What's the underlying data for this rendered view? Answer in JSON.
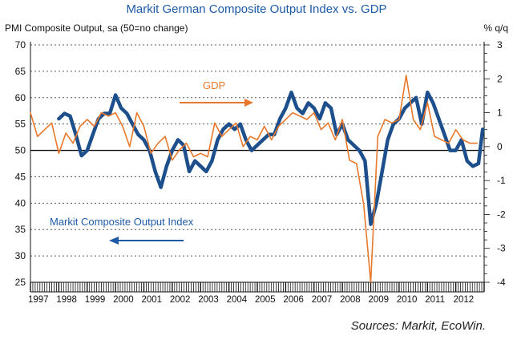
{
  "chart_data": {
    "type": "line",
    "title": "Markit German Composite Output Index vs. GDP",
    "left_axis_label": "PMI Composite Output, sa (50=no change)",
    "right_axis_label": "% q/q",
    "source": "Sources: Markit, EcoWin.",
    "left_ylim": [
      25,
      70
    ],
    "left_ticks": [
      "70",
      "65",
      "60",
      "55",
      "50",
      "45",
      "40",
      "35",
      "30",
      "25"
    ],
    "right_ylim": [
      -4,
      3
    ],
    "right_ticks": [
      "3",
      "2",
      "1",
      "0",
      "-1",
      "-2",
      "-3",
      "-4"
    ],
    "xlim": [
      1997,
      2013
    ],
    "x_tick_labels": [
      "1997",
      "1998",
      "1999",
      "2000",
      "2001",
      "2002",
      "2003",
      "2004",
      "2005",
      "2006",
      "2007",
      "2008",
      "2009",
      "2010",
      "2011",
      "2012"
    ],
    "reference_line": {
      "axis": "left",
      "value": 50
    },
    "annotations": [
      {
        "text": "GDP",
        "color": "#e8782b",
        "arrow": "right"
      },
      {
        "text": "Markit Composite Output Index",
        "color": "#1f5aa6",
        "arrow": "left"
      }
    ],
    "series": [
      {
        "name": "Markit Composite Output Index",
        "axis": "left",
        "color": "#1c4f8c",
        "x": [
          1998.0,
          1998.2,
          1998.4,
          1998.6,
          1998.8,
          1999.0,
          1999.2,
          1999.4,
          1999.6,
          1999.8,
          2000.0,
          2000.2,
          2000.4,
          2000.6,
          2000.8,
          2001.0,
          2001.2,
          2001.4,
          2001.6,
          2001.8,
          2002.0,
          2002.2,
          2002.4,
          2002.6,
          2002.8,
          2003.0,
          2003.2,
          2003.4,
          2003.6,
          2003.8,
          2004.0,
          2004.2,
          2004.4,
          2004.6,
          2004.8,
          2005.0,
          2005.2,
          2005.4,
          2005.6,
          2005.8,
          2006.0,
          2006.2,
          2006.4,
          2006.6,
          2006.8,
          2007.0,
          2007.2,
          2007.4,
          2007.6,
          2007.8,
          2008.0,
          2008.2,
          2008.4,
          2008.6,
          2008.8,
          2009.0,
          2009.2,
          2009.4,
          2009.6,
          2009.8,
          2010.0,
          2010.2,
          2010.4,
          2010.6,
          2010.8,
          2011.0,
          2011.2,
          2011.4,
          2011.6,
          2011.8,
          2012.0,
          2012.2,
          2012.4,
          2012.6,
          2012.8,
          2012.95
        ],
        "values": [
          56,
          57,
          56.5,
          53,
          49,
          50,
          53,
          56,
          57,
          57,
          60.5,
          58,
          57,
          55,
          53,
          52,
          50,
          46,
          43,
          47,
          50,
          52,
          51,
          46,
          48,
          47,
          46,
          48,
          52,
          54,
          55,
          54,
          55,
          52,
          50,
          51,
          52,
          53,
          53,
          56,
          58,
          61,
          58,
          57,
          59,
          58,
          56,
          59,
          58,
          53,
          55,
          52,
          51,
          50,
          48,
          36,
          40,
          46,
          52,
          55,
          56,
          58,
          59,
          60,
          55,
          61,
          59,
          56,
          53,
          50,
          50,
          52,
          48,
          47,
          47.5,
          54
        ]
      },
      {
        "name": "GDP",
        "axis": "right",
        "color": "#e8782b",
        "x": [
          1997.0,
          1997.25,
          1997.5,
          1997.75,
          1998.0,
          1998.25,
          1998.5,
          1998.75,
          1999.0,
          1999.25,
          1999.5,
          1999.75,
          2000.0,
          2000.25,
          2000.5,
          2000.75,
          2001.0,
          2001.25,
          2001.5,
          2001.75,
          2002.0,
          2002.25,
          2002.5,
          2002.75,
          2003.0,
          2003.25,
          2003.5,
          2003.75,
          2004.0,
          2004.25,
          2004.5,
          2004.75,
          2005.0,
          2005.25,
          2005.5,
          2005.75,
          2006.0,
          2006.25,
          2006.5,
          2006.75,
          2007.0,
          2007.25,
          2007.5,
          2007.75,
          2008.0,
          2008.25,
          2008.5,
          2008.75,
          2009.0,
          2009.25,
          2009.5,
          2009.75,
          2010.0,
          2010.25,
          2010.5,
          2010.75,
          2011.0,
          2011.25,
          2011.5,
          2011.75,
          2012.0,
          2012.25,
          2012.5,
          2012.75
        ],
        "values": [
          1.0,
          0.3,
          0.5,
          0.7,
          -0.2,
          0.4,
          0.1,
          0.6,
          0.8,
          0.6,
          1.0,
          0.9,
          1.0,
          0.6,
          0.0,
          1.0,
          0.6,
          -0.2,
          0.1,
          0.3,
          -0.4,
          -0.1,
          0.1,
          -0.3,
          -0.2,
          -0.3,
          0.7,
          0.3,
          0.5,
          0.7,
          0.0,
          0.3,
          0.2,
          0.6,
          0.2,
          0.6,
          0.8,
          1.0,
          0.9,
          0.8,
          1.0,
          0.5,
          0.7,
          0.2,
          0.8,
          -0.4,
          -0.5,
          -1.7,
          -4.0,
          0.3,
          0.8,
          0.7,
          0.8,
          2.1,
          0.8,
          0.5,
          1.3,
          0.3,
          0.2,
          0.1,
          0.5,
          0.2,
          0.1,
          0.1
        ]
      }
    ]
  }
}
